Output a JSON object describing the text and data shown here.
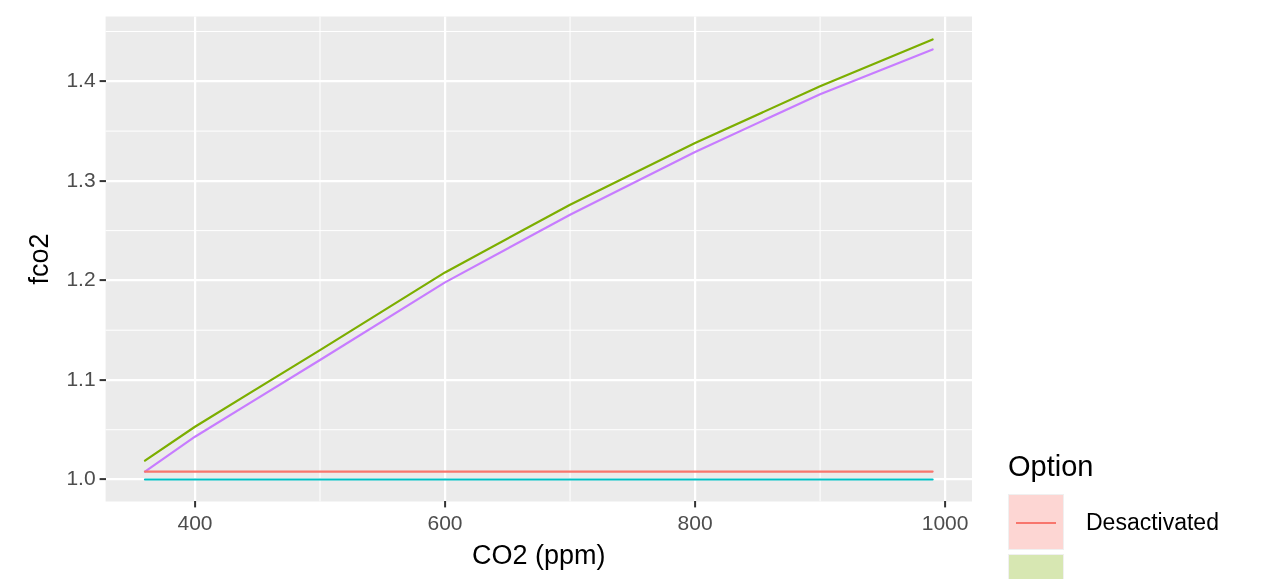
{
  "chart_data": {
    "type": "line",
    "xlabel": "CO2 (ppm)",
    "ylabel": "fco2",
    "legend_title": "Option",
    "legend": "right",
    "grid": true,
    "marker": "none",
    "line_style": "solid",
    "x": [
      360,
      400,
      500,
      600,
      700,
      800,
      900,
      990
    ],
    "xlim": [
      328.5,
      1021.5
    ],
    "xticks": [
      400,
      600,
      800,
      1000
    ],
    "ylim": [
      0.978,
      1.465
    ],
    "yticks": [
      {
        "value": 1,
        "label": "1.0"
      },
      1.1,
      1.2,
      1.3,
      1.4
    ],
    "series": [
      {
        "name": "Desactivated",
        "color": "#f8766d",
        "values": [
          1.008,
          1.008,
          1.008,
          1.008,
          1.008,
          1.008,
          1.008,
          1.008
        ]
      },
      {
        "color": "#7cae00",
        "values": [
          1.019,
          1.053,
          1.13,
          1.208,
          1.276,
          1.338,
          1.395,
          1.442
        ]
      },
      {
        "color": "#00bfc4",
        "values": [
          1.0,
          1.0,
          1.0,
          1.0,
          1.0,
          1.0,
          1.0,
          1.0
        ]
      },
      {
        "color": "#c77cff",
        "values": [
          1.008,
          1.043,
          1.12,
          1.198,
          1.266,
          1.329,
          1.387,
          1.432
        ]
      }
    ]
  }
}
